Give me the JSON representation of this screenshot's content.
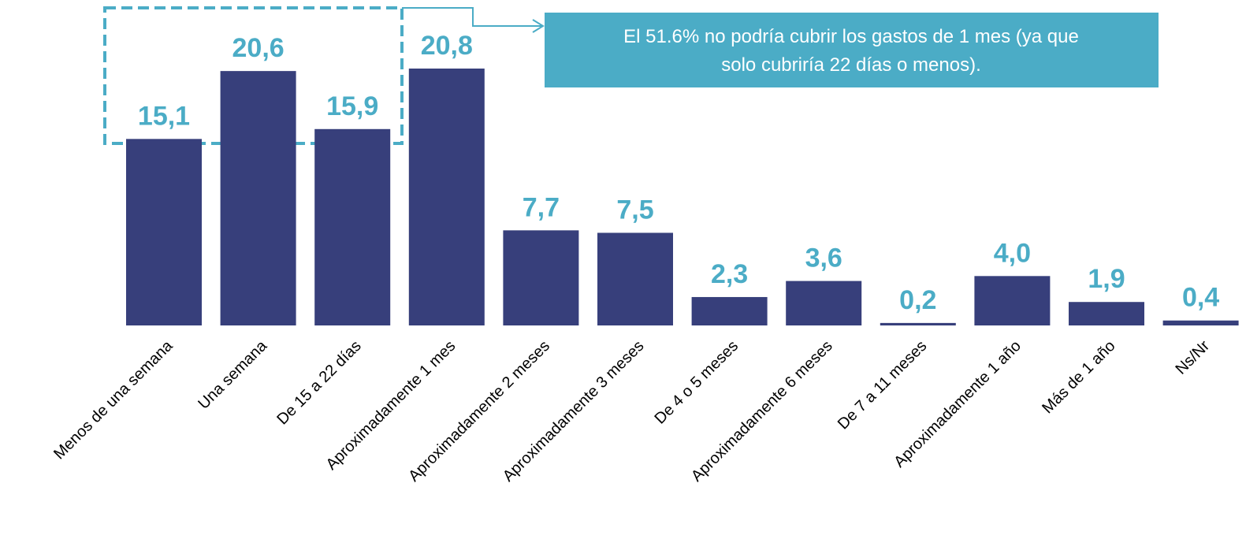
{
  "chart_data": {
    "type": "bar",
    "categories": [
      "Menos de una semana",
      "Una semana",
      "De 15 a 22 días",
      "Aproximadamente 1 mes",
      "Aproximadamente 2 meses",
      "Aproximadamente 3 meses",
      "De 4 o 5 meses",
      "Aproximadamente 6 meses",
      "De 7 a 11 meses",
      "Aproximadamente 1 año",
      "Más de 1 año",
      "Ns/Nr"
    ],
    "values": [
      15.1,
      20.6,
      15.9,
      20.8,
      7.7,
      7.5,
      2.3,
      3.6,
      0.2,
      4.0,
      1.9,
      0.4
    ],
    "value_labels": [
      "15,1",
      "20,6",
      "15,9",
      "20,8",
      "7,7",
      "7,5",
      "2,3",
      "3,6",
      "0,2",
      "4,0",
      "1,9",
      "0,4"
    ],
    "color": "#373f7b",
    "label_color": "#4bacc6",
    "annotation": [
      "El 51.6% no podría cubrir los gastos de 1 mes (ya que",
      "solo cubriría 22 días o menos)."
    ]
  }
}
